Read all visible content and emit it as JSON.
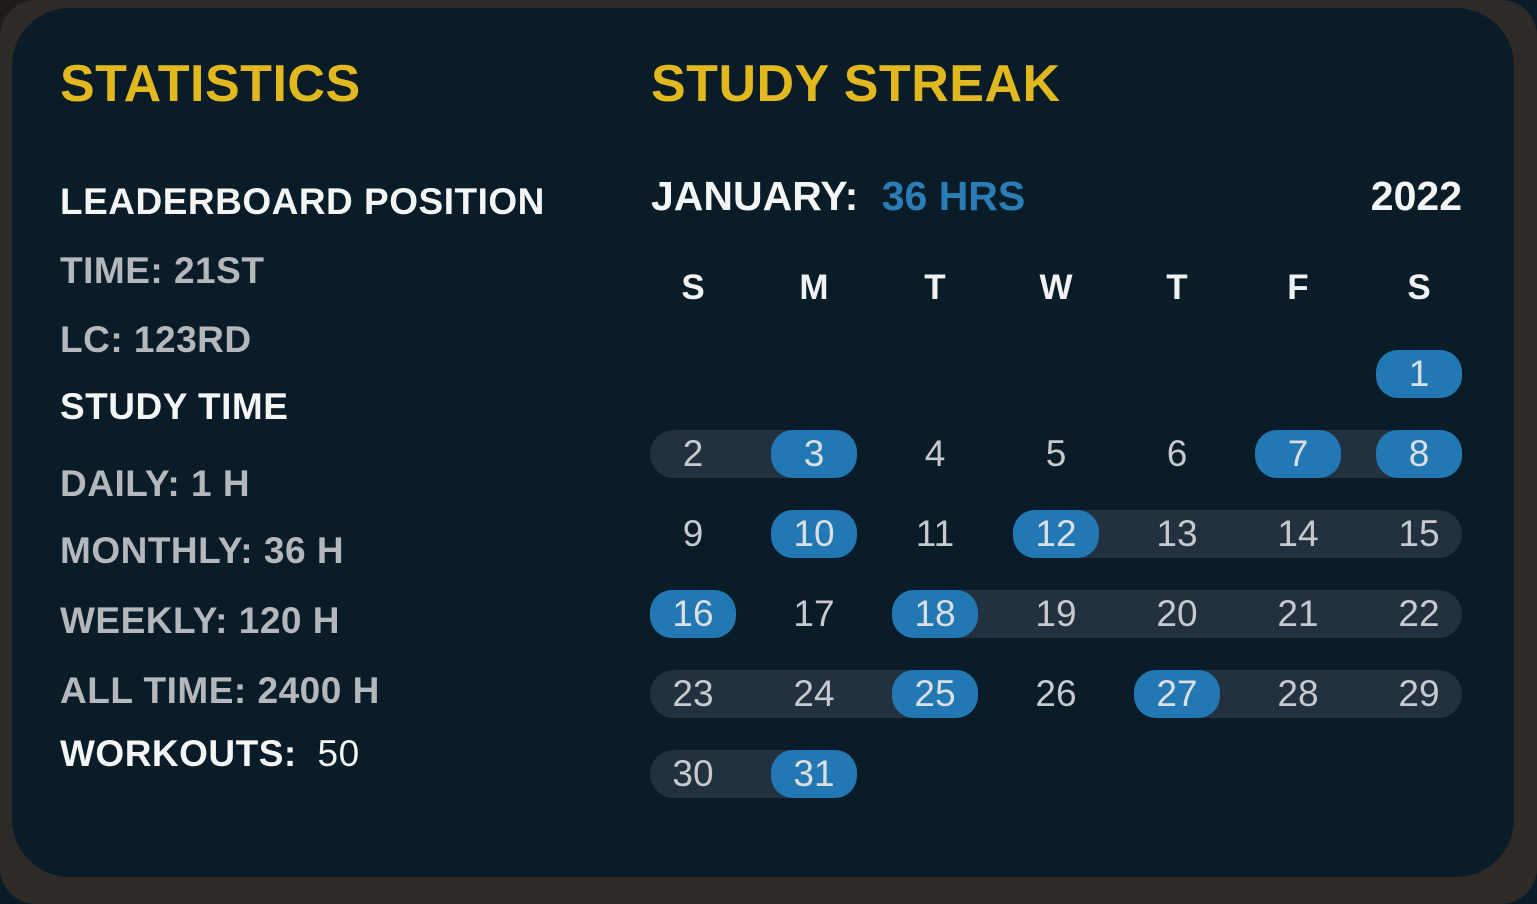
{
  "colors": {
    "background": "#0a1c27",
    "frame": "#2d2a27",
    "corner_shade": "#1e1b18",
    "accent_yellow": "#e2b81f",
    "accent_blue": "#2b7db6",
    "pill_blue": "#2278b3",
    "band": "#22303f",
    "text_primary": "#f4f5f5",
    "text_secondary": "#b4b8bc",
    "day_number": "#c6c9cd",
    "day_number_active": "#dbdfe3"
  },
  "statistics": {
    "title": "STATISTICS",
    "lines": [
      {
        "text": "LEADERBOARD POSITION",
        "kind": "heading"
      },
      {
        "text": "TIME: 21ST",
        "kind": "item"
      },
      {
        "text": "LC: 123RD",
        "kind": "item"
      },
      {
        "text": "STUDY TIME",
        "kind": "heading"
      },
      {
        "text": "DAILY: 1 H",
        "kind": "item"
      },
      {
        "text": "MONTHLY: 36 H",
        "kind": "item"
      },
      {
        "text": "WEEKLY: 120 H",
        "kind": "item"
      },
      {
        "text": "ALL TIME: 2400 H",
        "kind": "item"
      }
    ],
    "workouts": {
      "label": "WORKOUTS:",
      "value": "50"
    }
  },
  "streak": {
    "title": "STUDY STREAK",
    "month_label": "JANUARY:",
    "month_total": "36 HRS",
    "year": "2022",
    "day_headers": [
      "S",
      "M",
      "T",
      "W",
      "T",
      "F",
      "S"
    ],
    "weeks": [
      {
        "bands": [],
        "days": [
          {
            "day": "1",
            "col": 6,
            "active": true
          }
        ]
      },
      {
        "bands": [
          [
            0,
            1
          ],
          [
            5,
            6
          ]
        ],
        "days": [
          {
            "day": "2",
            "col": 0,
            "active": false
          },
          {
            "day": "3",
            "col": 1,
            "active": true
          },
          {
            "day": "4",
            "col": 2,
            "active": false
          },
          {
            "day": "5",
            "col": 3,
            "active": false
          },
          {
            "day": "6",
            "col": 4,
            "active": false
          },
          {
            "day": "7",
            "col": 5,
            "active": true
          },
          {
            "day": "8",
            "col": 6,
            "active": true
          }
        ]
      },
      {
        "bands": [
          [
            3,
            6
          ]
        ],
        "days": [
          {
            "day": "9",
            "col": 0,
            "active": false
          },
          {
            "day": "10",
            "col": 1,
            "active": true
          },
          {
            "day": "11",
            "col": 2,
            "active": false
          },
          {
            "day": "12",
            "col": 3,
            "active": true
          },
          {
            "day": "13",
            "col": 4,
            "active": false
          },
          {
            "day": "14",
            "col": 5,
            "active": false
          },
          {
            "day": "15",
            "col": 6,
            "active": false
          }
        ]
      },
      {
        "bands": [
          [
            2,
            6
          ]
        ],
        "days": [
          {
            "day": "16",
            "col": 0,
            "active": true
          },
          {
            "day": "17",
            "col": 1,
            "active": false
          },
          {
            "day": "18",
            "col": 2,
            "active": true
          },
          {
            "day": "19",
            "col": 3,
            "active": false
          },
          {
            "day": "20",
            "col": 4,
            "active": false
          },
          {
            "day": "21",
            "col": 5,
            "active": false
          },
          {
            "day": "22",
            "col": 6,
            "active": false
          }
        ]
      },
      {
        "bands": [
          [
            0,
            2
          ],
          [
            4,
            6
          ]
        ],
        "days": [
          {
            "day": "23",
            "col": 0,
            "active": false
          },
          {
            "day": "24",
            "col": 1,
            "active": false
          },
          {
            "day": "25",
            "col": 2,
            "active": true
          },
          {
            "day": "26",
            "col": 3,
            "active": false
          },
          {
            "day": "27",
            "col": 4,
            "active": true
          },
          {
            "day": "28",
            "col": 5,
            "active": false
          },
          {
            "day": "29",
            "col": 6,
            "active": false
          }
        ]
      },
      {
        "bands": [
          [
            0,
            1
          ]
        ],
        "days": [
          {
            "day": "30",
            "col": 0,
            "active": false
          },
          {
            "day": "31",
            "col": 1,
            "active": true
          }
        ]
      }
    ]
  }
}
